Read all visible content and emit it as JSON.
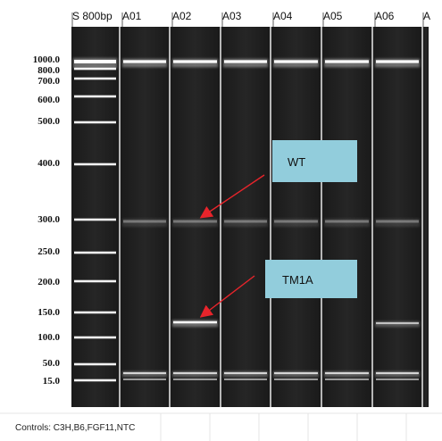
{
  "lanes": [
    {
      "label": "S 800bp"
    },
    {
      "label": "A01"
    },
    {
      "label": "A02"
    },
    {
      "label": "A03"
    },
    {
      "label": "A04"
    },
    {
      "label": "A05"
    },
    {
      "label": "A06"
    },
    {
      "label": "A"
    }
  ],
  "ladder_sizes": [
    {
      "label": "1000.0",
      "value": 1000
    },
    {
      "label": "800.0",
      "value": 800
    },
    {
      "label": "700.0",
      "value": 700
    },
    {
      "label": "600.0",
      "value": 600
    },
    {
      "label": "500.0",
      "value": 500
    },
    {
      "label": "400.0",
      "value": 400
    },
    {
      "label": "300.0",
      "value": 300
    },
    {
      "label": "250.0",
      "value": 250
    },
    {
      "label": "200.0",
      "value": 200
    },
    {
      "label": "150.0",
      "value": 150
    },
    {
      "label": "100.0",
      "value": 100
    },
    {
      "label": "50.0",
      "value": 50
    },
    {
      "label": "15.0",
      "value": 15
    }
  ],
  "annotations": {
    "wt": "WT",
    "tm1a": "TM1A"
  },
  "caption": "Controls: C3H,B6,FGF11,NTC",
  "colors": {
    "gel": "#111111",
    "lane_divider": "#e8e8e8",
    "band": "#ffffff",
    "callout_fill": "#92cddc",
    "arrow": "#e8242b"
  }
}
